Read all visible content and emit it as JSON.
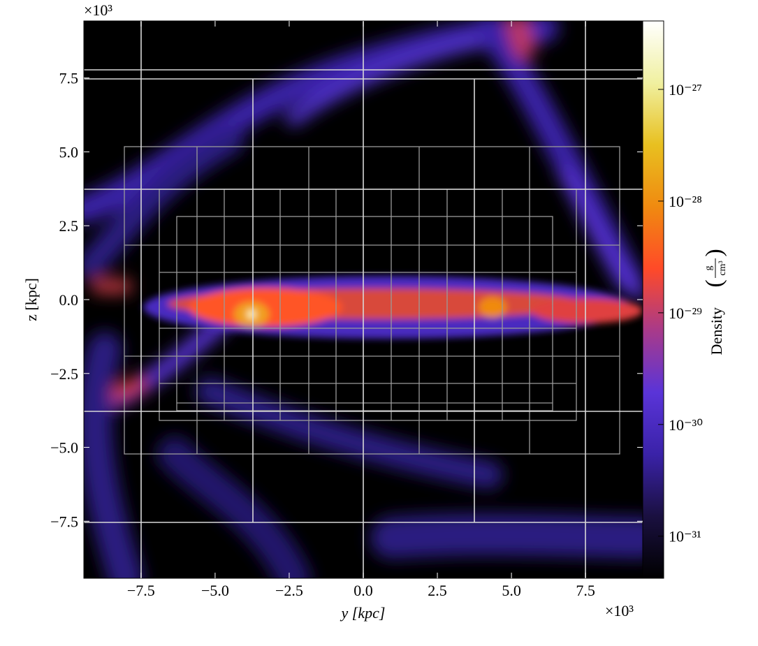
{
  "chart_data": {
    "type": "image",
    "xlabel": "y [kpc]",
    "ylabel": "z [kpc]",
    "x_multiplier": "×10³",
    "y_multiplier": "×10³",
    "xlim": [
      -9.43,
      9.43
    ],
    "ylim": [
      -9.43,
      9.43
    ],
    "xticks": [
      {
        "value": -7.5,
        "label": "−7.5"
      },
      {
        "value": -5,
        "label": "−5.0"
      },
      {
        "value": -2.5,
        "label": "−2.5"
      },
      {
        "value": 0,
        "label": "0.0"
      },
      2.5,
      {
        "value": 5,
        "label": "5.0"
      },
      7.5
    ],
    "yticks": [
      {
        "value": -7.5,
        "label": "−7.5"
      },
      {
        "value": -5,
        "label": "−5.0"
      },
      {
        "value": -2.5,
        "label": "−2.5"
      },
      {
        "value": 0,
        "label": "0.0"
      },
      2.5,
      {
        "value": 5,
        "label": "5.0"
      },
      7.5
    ],
    "colorbar": {
      "label": "Density",
      "unit_numerator": "g",
      "unit_denominator": "cm³",
      "log": true,
      "clim": [
        4.2e-32,
        4.1e-27
      ],
      "ticks": [
        {
          "value": 1e-31,
          "label": "10⁻³¹"
        },
        {
          "value": 1e-30,
          "label": "10⁻³⁰"
        },
        {
          "value": 1e-29,
          "label": "10⁻²⁹"
        },
        {
          "value": 1e-28,
          "label": "10⁻²⁸"
        },
        {
          "value": 1e-27,
          "label": "10⁻²⁷"
        }
      ],
      "colormap": [
        "#000000",
        "#1a1040",
        "#3a22a8",
        "#5a34d8",
        "#a83a8a",
        "#ff4a28",
        "#f08a10",
        "#e8c020",
        "#f0f0a0",
        "#ffffff"
      ]
    }
  }
}
